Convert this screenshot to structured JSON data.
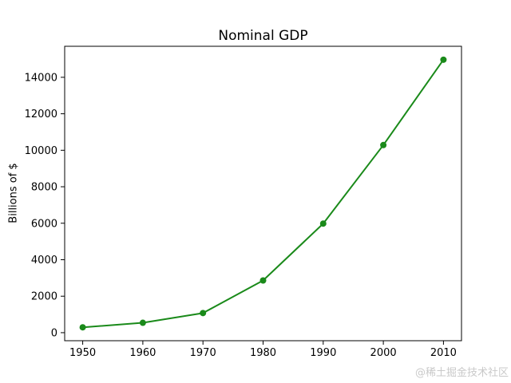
{
  "figure": {
    "title": "Nominal GDP",
    "ylabel": "Billions of $",
    "watermark": "@稀土掘金技术社区"
  },
  "colors": {
    "line": "#1a8a1a",
    "axis": "#000000",
    "text": "#000000",
    "watermark": "#c9c9c9",
    "background": "#ffffff"
  },
  "chart_data": {
    "type": "line",
    "title": "Nominal GDP",
    "xlabel": "",
    "ylabel": "Billions of $",
    "series": [
      {
        "name": "Nominal GDP",
        "x": [
          1950,
          1960,
          1970,
          1980,
          1990,
          2000,
          2010
        ],
        "values": [
          293.7,
          543.3,
          1075.9,
          2862.5,
          5979.6,
          10284.8,
          14964.4
        ]
      }
    ],
    "x_ticks": [
      1950,
      1960,
      1970,
      1980,
      1990,
      2000,
      2010
    ],
    "y_ticks": [
      0,
      2000,
      4000,
      6000,
      8000,
      10000,
      12000,
      14000
    ],
    "xlim": [
      1947,
      2013
    ],
    "ylim": [
      -440,
      15700
    ],
    "grid": false,
    "legend": "none",
    "marker": "o",
    "line_color": "#1a8a1a"
  }
}
